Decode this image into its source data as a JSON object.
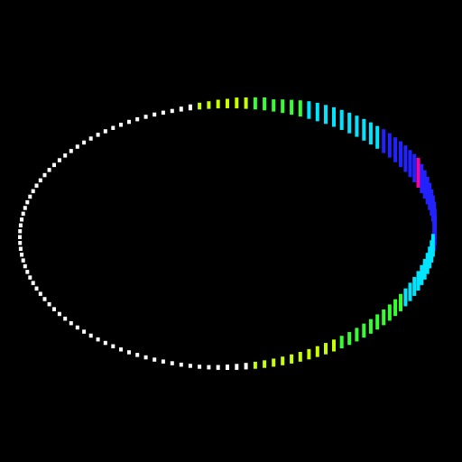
{
  "scene": {
    "background_color": "#000000",
    "description_shape": "ring-of-bars",
    "colors": {
      "idle": "#ffffff",
      "yellow_green": "#c8ff00",
      "green": "#33ff33",
      "cyan": "#00e5ff",
      "blue": "#2222ff",
      "magenta": "#ff0099"
    },
    "palette_stops": [
      {
        "level": 0.0,
        "color": "#ffffff"
      },
      {
        "level": 0.15,
        "color": "#c8ff00"
      },
      {
        "level": 0.35,
        "color": "#33ff33"
      },
      {
        "level": 0.55,
        "color": "#00e5ff"
      },
      {
        "level": 0.75,
        "color": "#2222ff"
      },
      {
        "level": 1.0,
        "color": "#ff0099"
      }
    ],
    "segments": 140,
    "levels": [
      0.05,
      0.05,
      0.05,
      0.05,
      0.05,
      0.05,
      0.05,
      0.05,
      0.05,
      0.05,
      0.05,
      0.05,
      0.05,
      0.05,
      0.05,
      0.05,
      0.05,
      0.05,
      0.05,
      0.05,
      0.05,
      0.05,
      0.05,
      0.05,
      0.05,
      0.05,
      0.05,
      0.05,
      0.05,
      0.05,
      0.08,
      0.12,
      0.15,
      0.18,
      0.22,
      0.25,
      0.3,
      0.32,
      0.35,
      0.38,
      0.35,
      0.4,
      0.45,
      0.5,
      0.55,
      0.58,
      0.6,
      0.62,
      0.64,
      0.66,
      0.68,
      0.7,
      0.72,
      0.74,
      0.78,
      0.8,
      0.82,
      0.85,
      0.88,
      0.9,
      0.95,
      1.0,
      0.98,
      0.95,
      0.92,
      0.9,
      0.88,
      0.86,
      0.85,
      0.82,
      0.8,
      0.78,
      0.76,
      0.74,
      0.72,
      0.7,
      0.68,
      0.66,
      0.64,
      0.62,
      0.6,
      0.58,
      0.56,
      0.54,
      0.52,
      0.5,
      0.48,
      0.46,
      0.44,
      0.42,
      0.4,
      0.38,
      0.36,
      0.34,
      0.32,
      0.3,
      0.28,
      0.26,
      0.24,
      0.22,
      0.2,
      0.18,
      0.16,
      0.14,
      0.12,
      0.1,
      0.08,
      0.06,
      0.05,
      0.05,
      0.05,
      0.05,
      0.05,
      0.05,
      0.05,
      0.05,
      0.05,
      0.05,
      0.05,
      0.05,
      0.05,
      0.05,
      0.05,
      0.05,
      0.05,
      0.05,
      0.05,
      0.05,
      0.05,
      0.05,
      0.05,
      0.05,
      0.05,
      0.05,
      0.05,
      0.05,
      0.05,
      0.05,
      0.05,
      0.05
    ]
  }
}
